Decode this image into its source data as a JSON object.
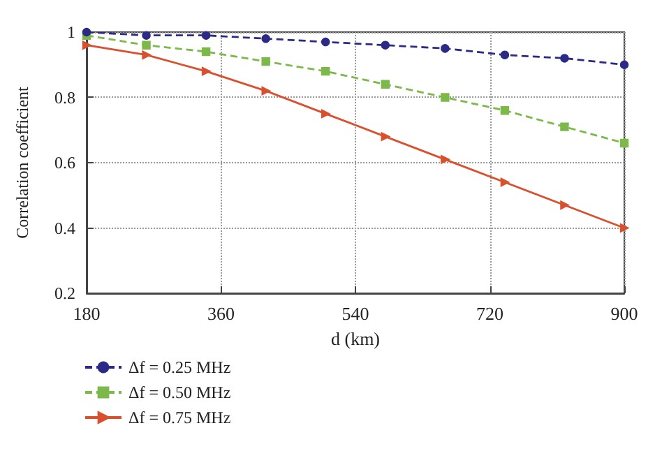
{
  "chart_data": {
    "type": "line",
    "xlabel": "d (km)",
    "ylabel": "Correlation coefficient",
    "x": [
      180,
      260,
      340,
      420,
      500,
      580,
      660,
      740,
      820,
      900
    ],
    "xlim": [
      180,
      900
    ],
    "xticks": [
      180,
      360,
      540,
      720,
      900
    ],
    "ylim": [
      0.2,
      1
    ],
    "yticks": [
      0.2,
      0.4,
      0.6,
      0.8,
      1
    ],
    "grid": true,
    "legend": "bottom",
    "series": [
      {
        "name": "Δf = 0.25 MHz",
        "color": "#2b2a86",
        "marker": "circle",
        "line_style": "dashed",
        "values": [
          1.0,
          0.99,
          0.99,
          0.98,
          0.97,
          0.96,
          0.95,
          0.93,
          0.92,
          0.9
        ]
      },
      {
        "name": "Δf = 0.50 MHz",
        "color": "#7db84a",
        "marker": "square",
        "line_style": "dashed",
        "values": [
          0.99,
          0.96,
          0.94,
          0.91,
          0.88,
          0.84,
          0.8,
          0.76,
          0.71,
          0.66
        ]
      },
      {
        "name": "Δf = 0.75 MHz",
        "color": "#d9502e",
        "marker": "triangle",
        "line_style": "solid",
        "values": [
          0.96,
          0.93,
          0.88,
          0.82,
          0.75,
          0.68,
          0.61,
          0.54,
          0.47,
          0.4
        ]
      }
    ]
  }
}
